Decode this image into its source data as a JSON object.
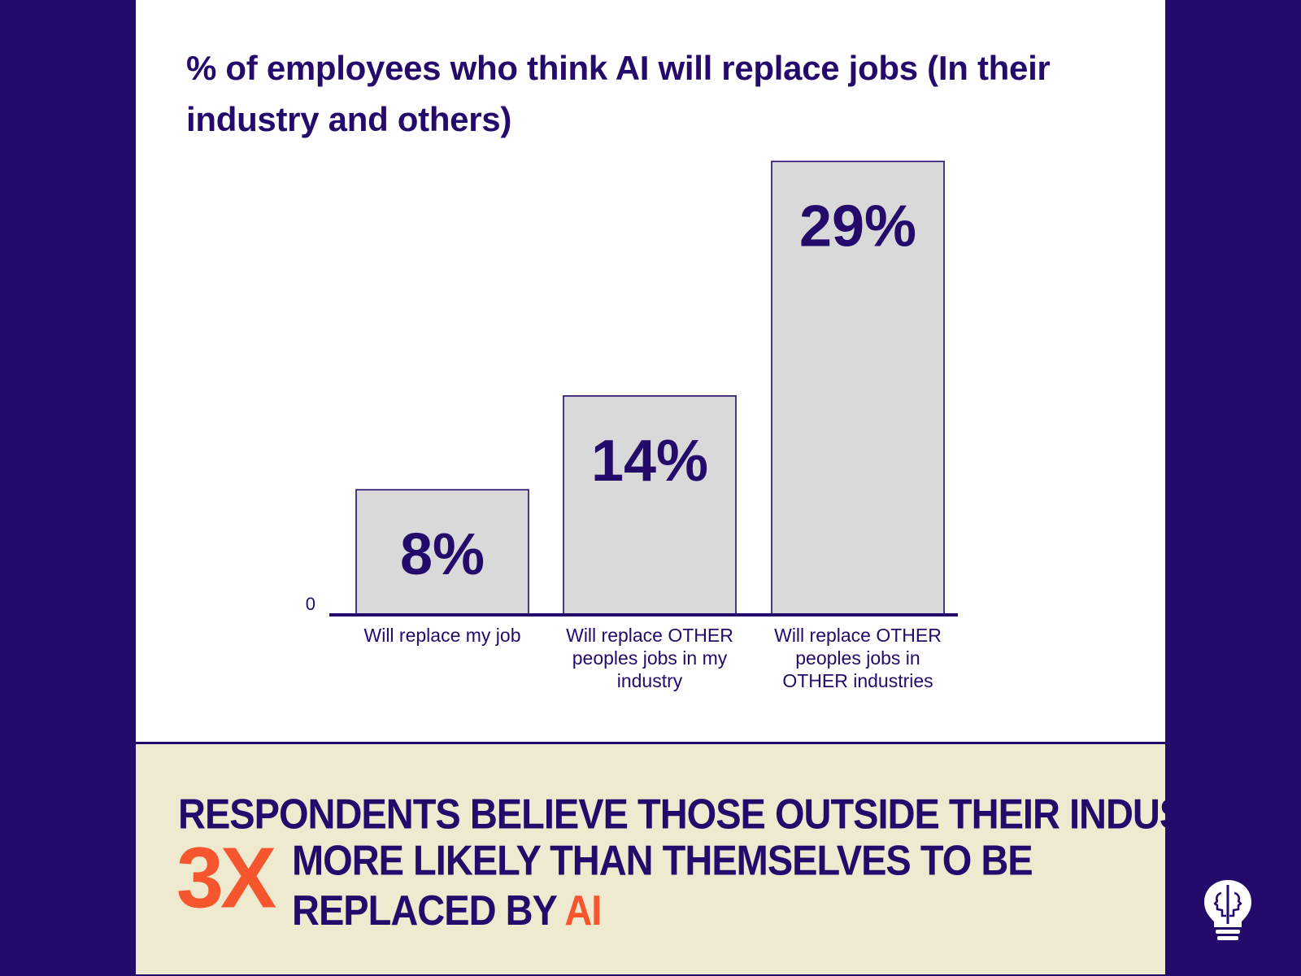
{
  "colors": {
    "background": "#230a6b",
    "card": "#ffffff",
    "bar_fill": "#d9d9d9",
    "text_primary": "#230a6b",
    "accent": "#f5562d",
    "footer_background": "#efe9d0"
  },
  "chart_data": {
    "type": "bar",
    "title": "% of employees who think AI will replace jobs (In their industry and others)",
    "categories": [
      [
        "Will replace my job"
      ],
      [
        "Will replace OTHER",
        "peoples jobs in my",
        "industry"
      ],
      [
        "Will replace OTHER",
        "peoples jobs in",
        "OTHER industries"
      ]
    ],
    "values": [
      8,
      14,
      29
    ],
    "value_labels": [
      "8%",
      "14%",
      "29%"
    ],
    "y_tick_labels": [
      "0"
    ],
    "ylim": [
      0,
      31
    ],
    "grid": false,
    "legend": "none"
  },
  "takeaway": {
    "line1": "RESPONDENTS BELIEVE THOSE OUTSIDE THEIR INDUSTRY ARE",
    "big_number": "3X",
    "line2": "MORE LIKELY THAN THEMSELVES TO BE",
    "line3_prefix": "REPLACED BY ",
    "line3_accent": "AI"
  },
  "logo": {
    "icon": "lightbulb-with-faces-icon"
  }
}
